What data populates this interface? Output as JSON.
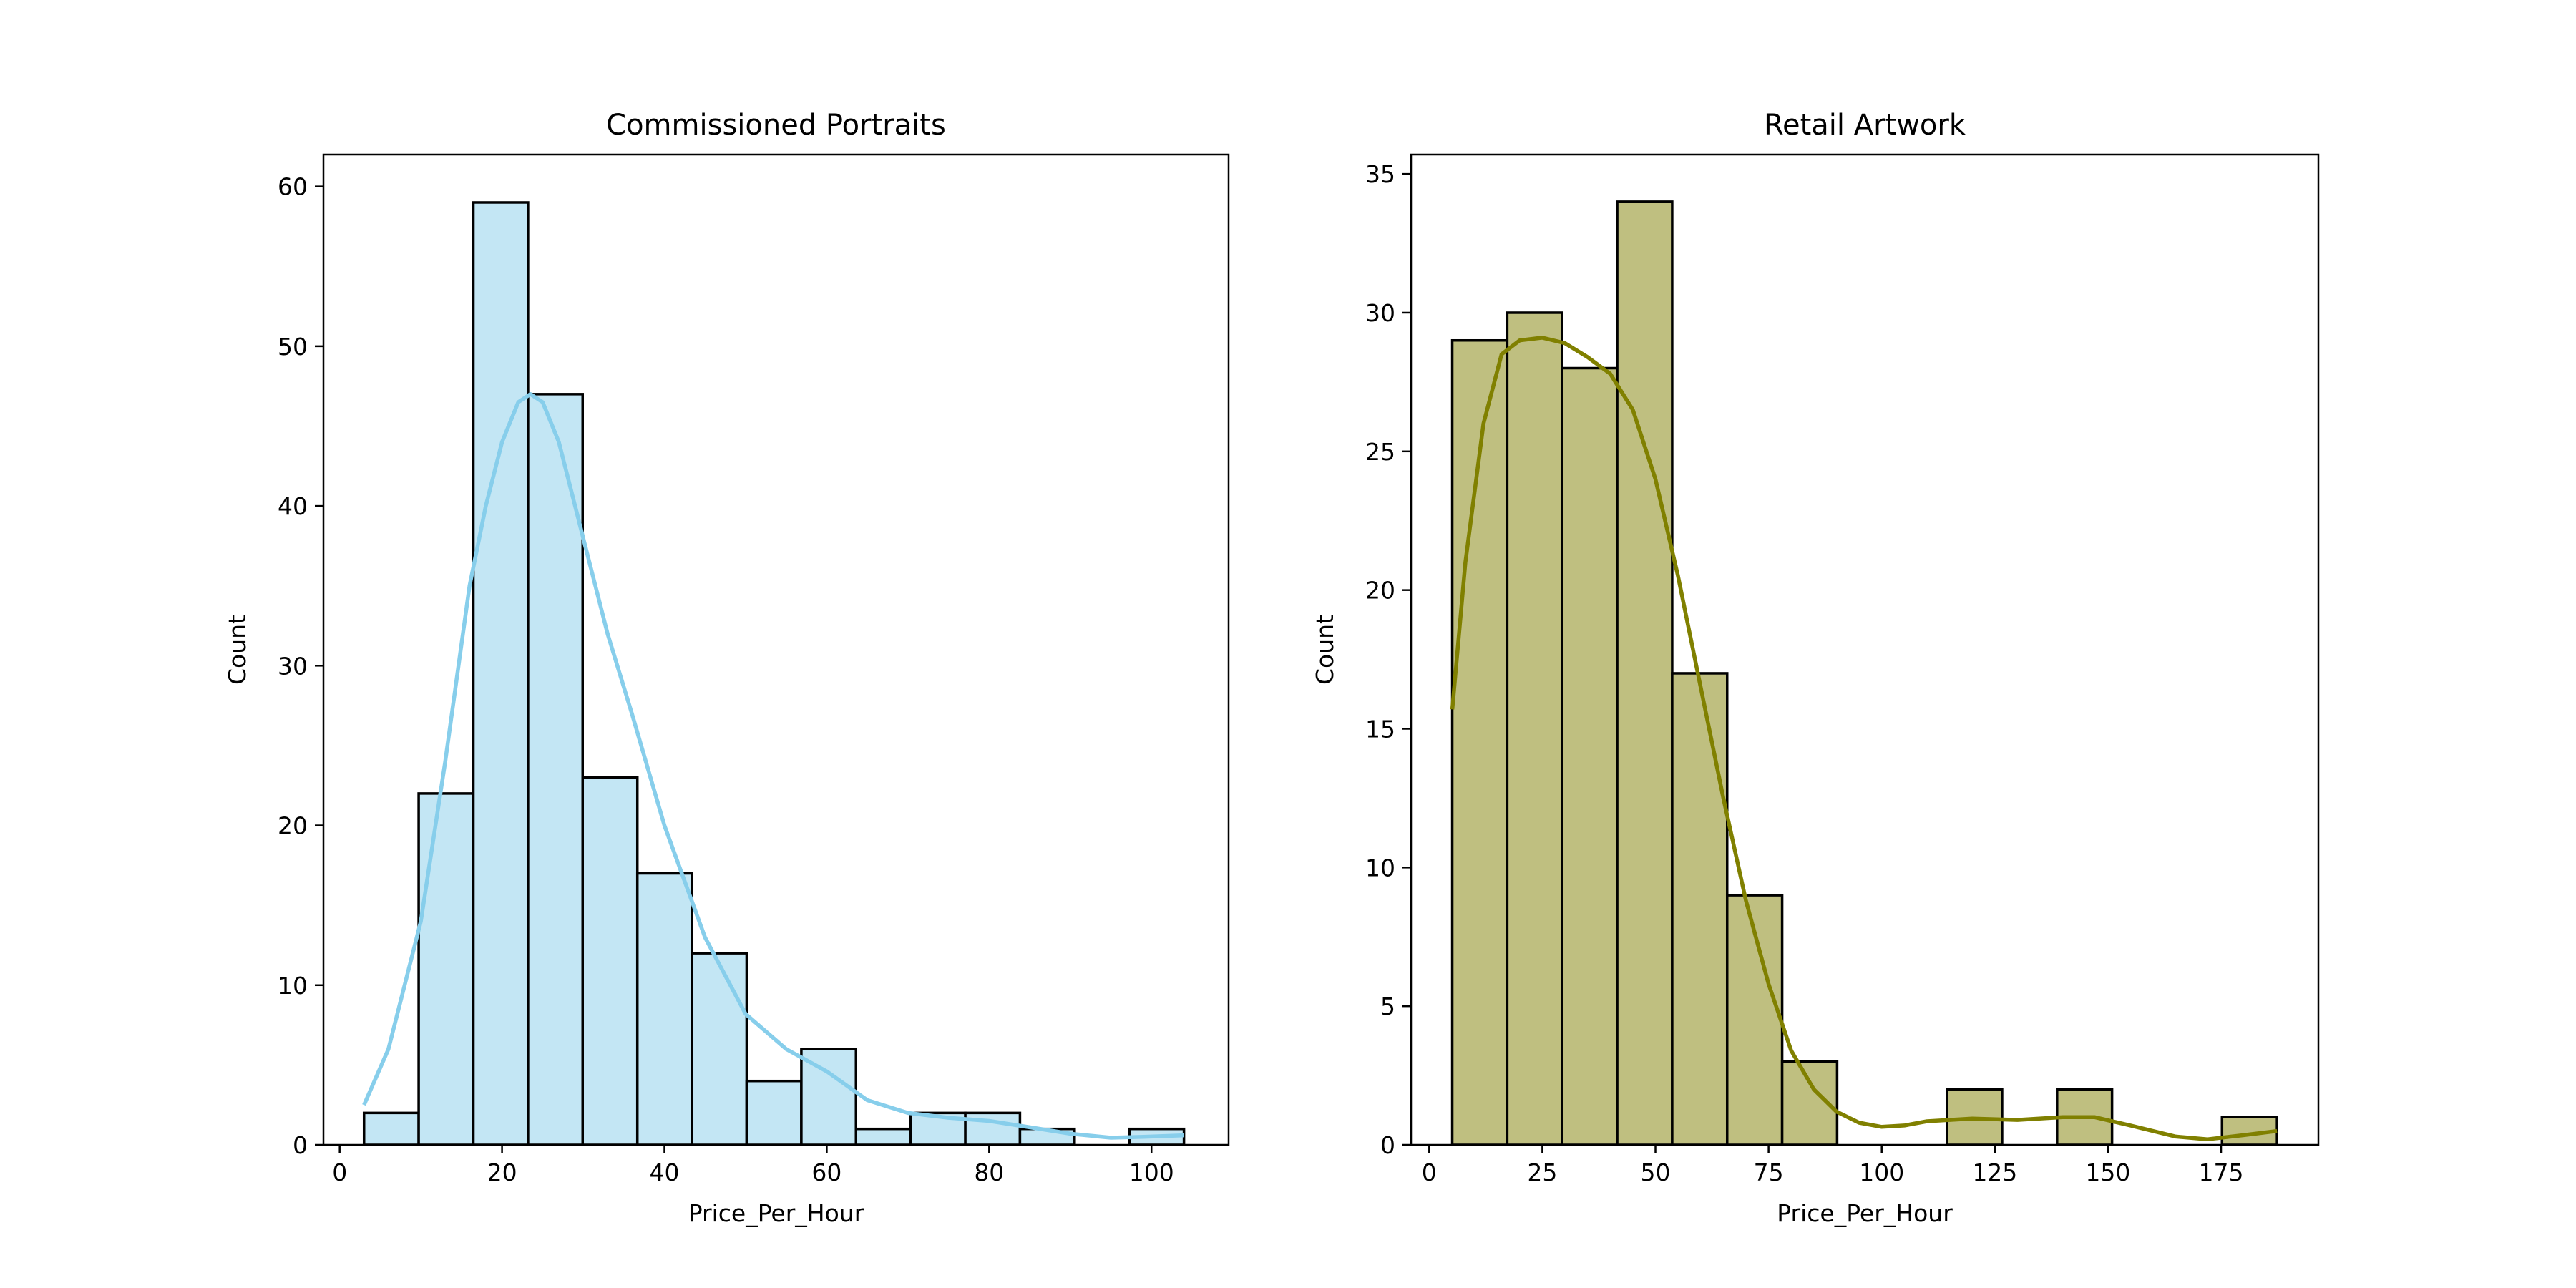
{
  "chart_data": [
    {
      "type": "bar",
      "title": "Commissioned Portraits",
      "xlabel": "Price_Per_Hour",
      "ylabel": "Count",
      "xlim": [
        -2,
        109.5
      ],
      "ylim": [
        0,
        62
      ],
      "xticks": [
        0,
        20,
        40,
        60,
        80,
        100
      ],
      "yticks": [
        0,
        10,
        20,
        30,
        40,
        50,
        60
      ],
      "bin_edges": [
        3.0,
        9.73,
        16.47,
        23.2,
        29.93,
        36.67,
        43.4,
        50.13,
        56.87,
        63.6,
        70.33,
        77.07,
        83.8,
        90.53,
        97.27,
        104.0
      ],
      "counts": [
        2,
        22,
        59,
        47,
        23,
        17,
        12,
        4,
        6,
        1,
        2,
        2,
        1,
        0,
        1
      ],
      "kde": {
        "x": [
          3,
          6,
          10,
          13,
          16,
          18,
          20,
          22,
          23.5,
          25,
          27,
          30,
          33,
          36,
          40,
          45,
          50,
          55,
          60,
          65,
          70,
          75,
          80,
          85,
          90,
          95,
          99,
          104
        ],
        "y": [
          2.5,
          6,
          14,
          24,
          35,
          40,
          44,
          46.5,
          47,
          46.5,
          44,
          38,
          32,
          27,
          20,
          13,
          8.2,
          6,
          4.6,
          2.8,
          2.0,
          1.7,
          1.5,
          1.1,
          0.7,
          0.45,
          0.5,
          0.6
        ]
      },
      "fill_color": "#c3e6f4",
      "line_color": "#87ceeb",
      "grid": false
    },
    {
      "type": "bar",
      "title": "Retail Artwork",
      "xlabel": "Price_Per_Hour",
      "ylabel": "Count",
      "xlim": [
        -4,
        196.5
      ],
      "ylim": [
        0,
        35.7
      ],
      "xticks": [
        0,
        25,
        50,
        75,
        100,
        125,
        150,
        175
      ],
      "yticks": [
        0,
        5,
        10,
        15,
        20,
        25,
        30,
        35
      ],
      "bin_edges": [
        5.1,
        17.25,
        29.4,
        41.55,
        53.7,
        65.85,
        78.0,
        90.15,
        102.3,
        114.45,
        126.6,
        138.75,
        150.9,
        163.05,
        175.2,
        187.35
      ],
      "counts": [
        29,
        30,
        28,
        34,
        17,
        9,
        3,
        0,
        0,
        2,
        0,
        2,
        0,
        0,
        1
      ],
      "kde": {
        "x": [
          5.1,
          8,
          12,
          16,
          20,
          25,
          30,
          35,
          40,
          45,
          50,
          55,
          60,
          65,
          70,
          75,
          80,
          85,
          90,
          95,
          100,
          105,
          110,
          120,
          130,
          140,
          147,
          155,
          165,
          172,
          180,
          187.35
        ],
        "y": [
          15.7,
          21,
          26,
          28.5,
          29,
          29.1,
          28.9,
          28.4,
          27.8,
          26.5,
          24,
          20.5,
          16.5,
          12.5,
          8.8,
          5.8,
          3.4,
          2.0,
          1.2,
          0.8,
          0.65,
          0.7,
          0.85,
          0.95,
          0.9,
          1.0,
          1.0,
          0.7,
          0.3,
          0.2,
          0.35,
          0.5
        ]
      },
      "fill_color": "#bfbf80",
      "line_color": "#808000",
      "grid": false
    }
  ]
}
